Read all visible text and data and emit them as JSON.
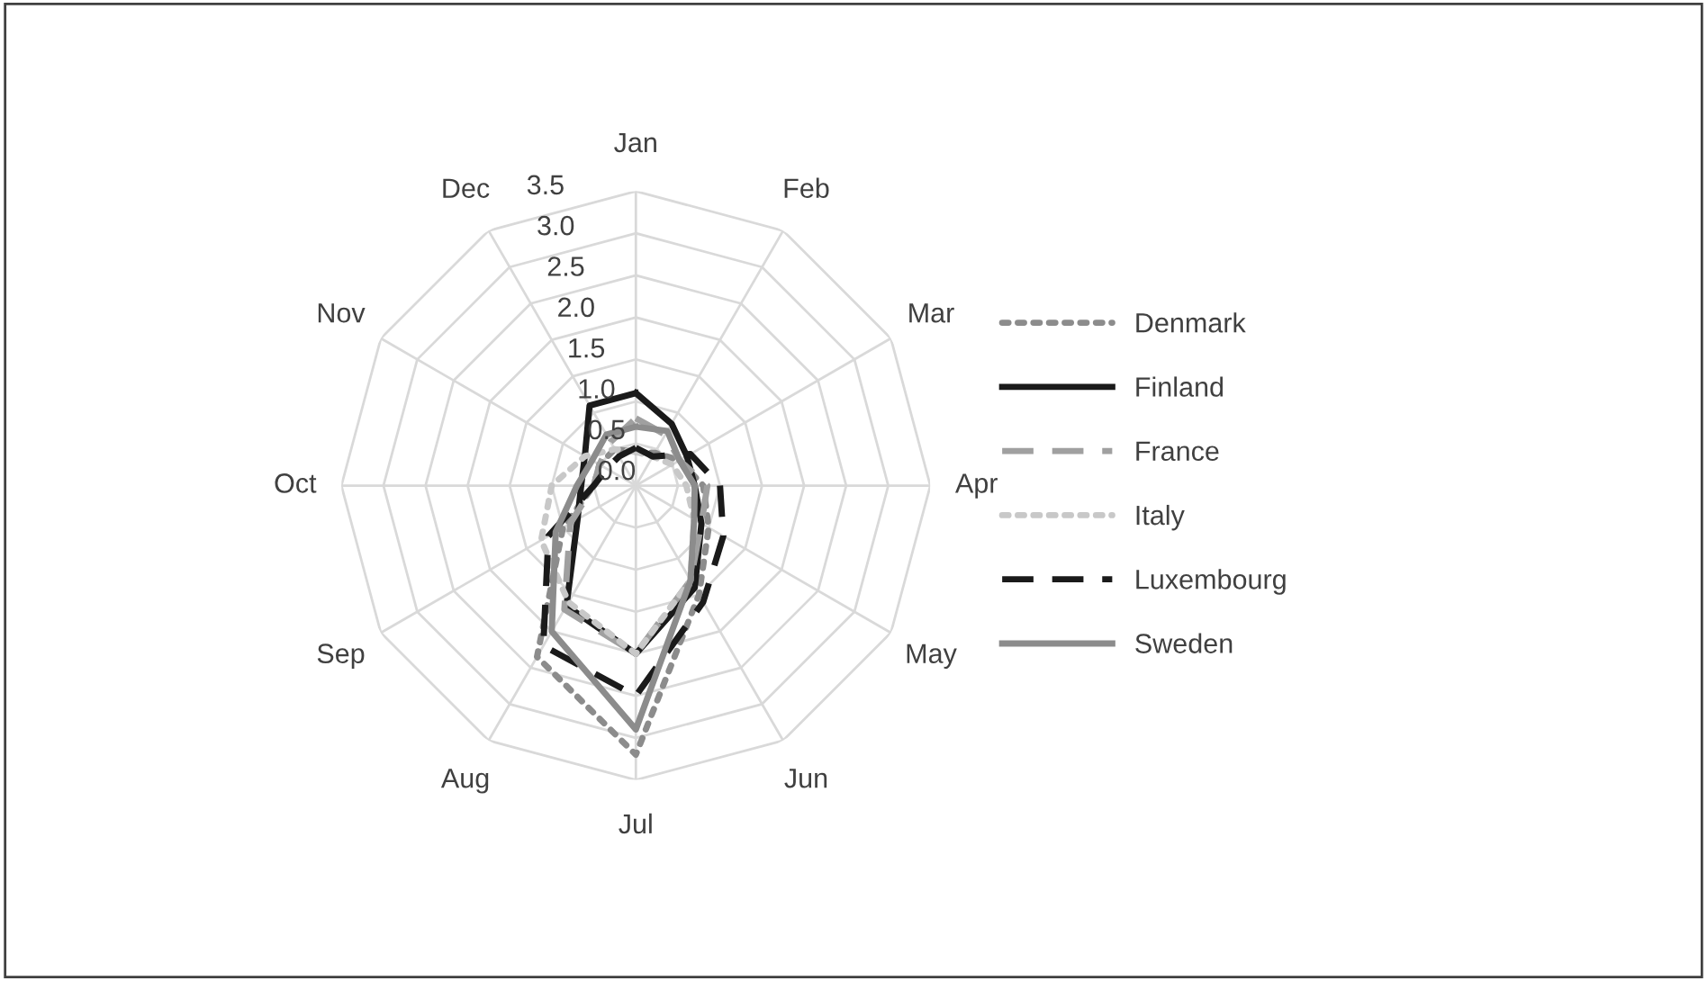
{
  "chart_data": {
    "type": "radar",
    "categories": [
      "Jan",
      "Feb",
      "Mar",
      "Apr",
      "May",
      "Jun",
      "Jul",
      "Aug",
      "Sep",
      "Oct",
      "Nov",
      "Dec"
    ],
    "ylim": [
      0,
      3.5
    ],
    "yticks": [
      {
        "value": 0,
        "label": "0.0"
      },
      {
        "value": 0.5,
        "label": "0.5"
      },
      {
        "value": 1,
        "label": "1.0"
      },
      {
        "value": 1.5,
        "label": "1.5"
      },
      {
        "value": 2,
        "label": "2.0"
      },
      {
        "value": 2.5,
        "label": "2.5"
      },
      {
        "value": 3,
        "label": "3.0"
      },
      {
        "value": 3.5,
        "label": "3.5"
      }
    ],
    "grid": true,
    "legend": "right",
    "marker": "none",
    "series": [
      {
        "name": "Denmark",
        "color": "#8c8c8c",
        "line_style": "dotted",
        "values": [
          0.4,
          0.45,
          0.6,
          0.8,
          1.0,
          1.5,
          3.2,
          2.35,
          1.0,
          0.5,
          0.5,
          0.5
        ]
      },
      {
        "name": "Finland",
        "color": "#1a1a1a",
        "line_style": "solid",
        "values": [
          1.1,
          0.85,
          0.7,
          0.7,
          0.9,
          1.4,
          2.0,
          1.65,
          0.8,
          0.65,
          0.7,
          1.1
        ]
      },
      {
        "name": "France",
        "color": "#a0a0a0",
        "line_style": "dashed",
        "values": [
          0.8,
          0.7,
          0.6,
          0.85,
          0.9,
          1.3,
          2.0,
          1.7,
          0.9,
          0.5,
          0.5,
          0.6
        ]
      },
      {
        "name": "Italy",
        "color": "#c8c8c8",
        "line_style": "dotted",
        "values": [
          0.4,
          0.4,
          0.5,
          0.6,
          0.8,
          1.3,
          2.0,
          1.6,
          1.3,
          1.0,
          0.7,
          0.5
        ]
      },
      {
        "name": "Luxembourg",
        "color": "#1a1a1a",
        "line_style": "dashed",
        "values": [
          0.45,
          0.4,
          0.75,
          1.0,
          1.2,
          1.6,
          2.5,
          2.2,
          1.2,
          0.5,
          0.4,
          0.4
        ]
      },
      {
        "name": "Sweden",
        "color": "#8c8c8c",
        "line_style": "solid",
        "values": [
          0.7,
          0.75,
          0.6,
          0.7,
          0.8,
          1.3,
          2.9,
          2.0,
          1.1,
          0.7,
          0.6,
          0.7
        ]
      }
    ]
  }
}
